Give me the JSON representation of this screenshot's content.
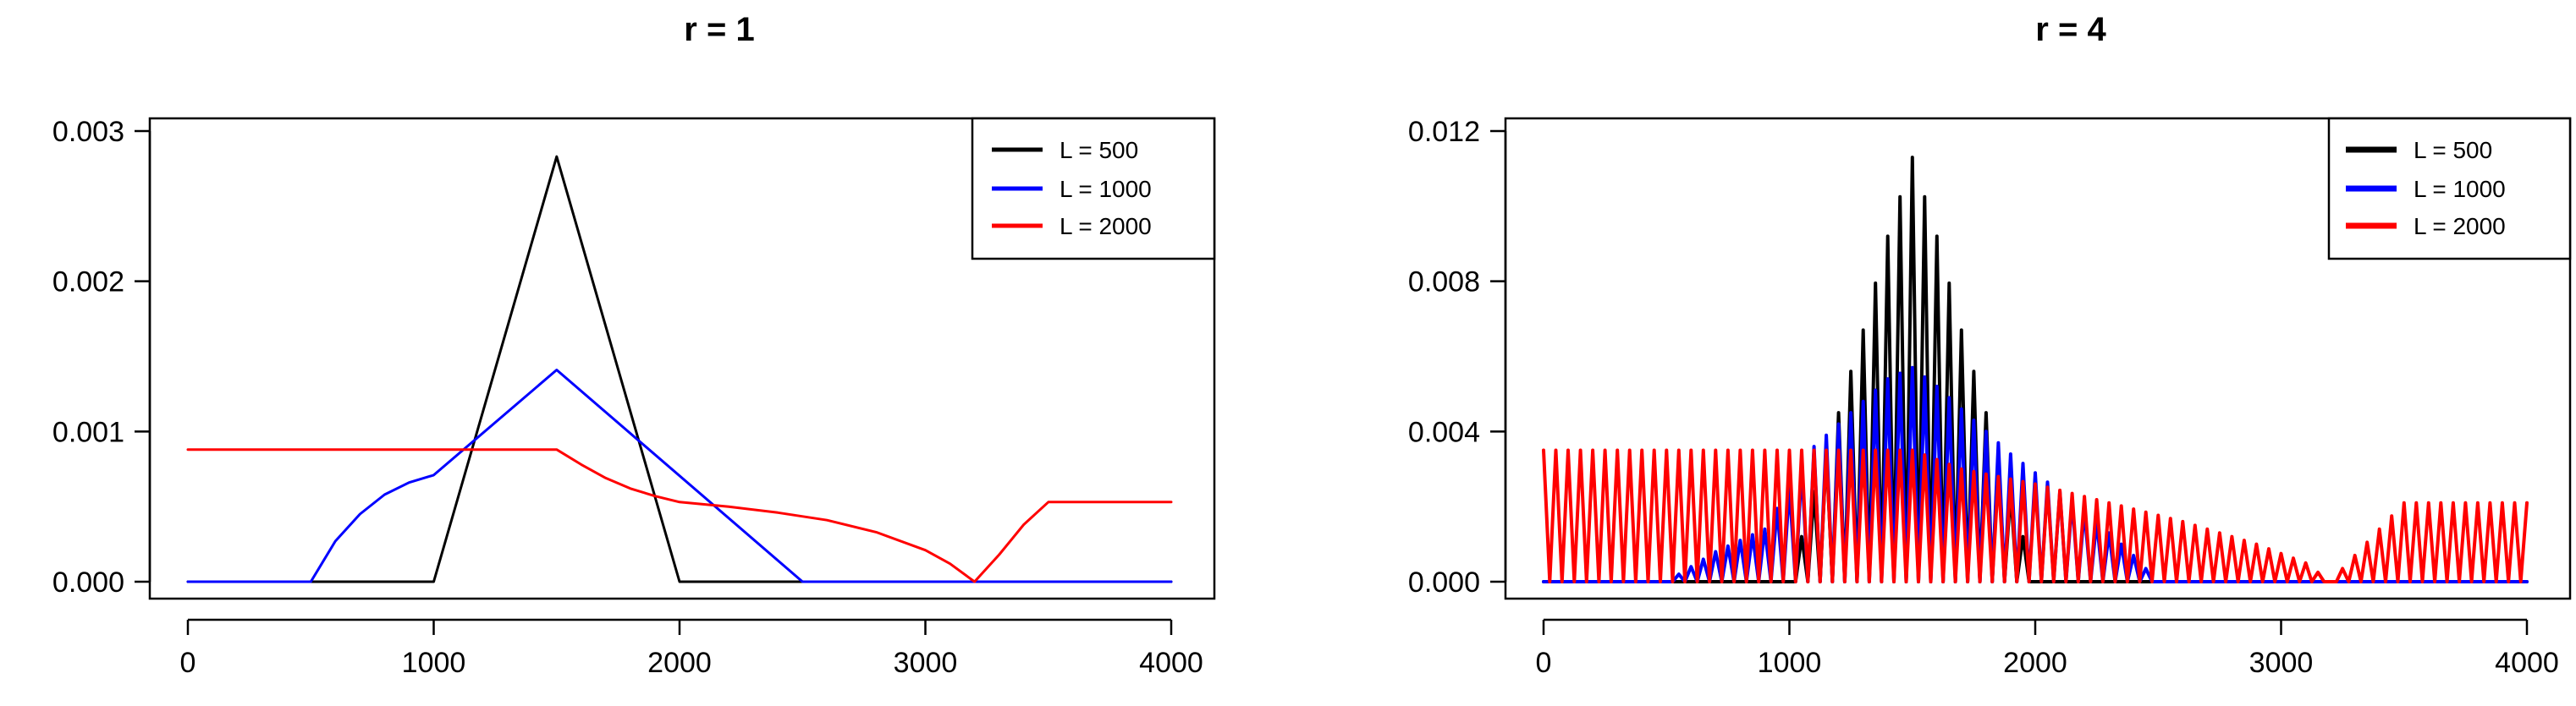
{
  "chart_data": [
    {
      "type": "line",
      "title": "r = 1",
      "xlabel": "",
      "ylabel": "",
      "xlim": [
        0,
        4000
      ],
      "ylim": [
        0,
        0.003
      ],
      "x_ticks": [
        0,
        1000,
        2000,
        3000,
        4000
      ],
      "x_tick_labels": [
        "0",
        "1000",
        "2000",
        "3000",
        "4000"
      ],
      "y_ticks": [
        0,
        0.001,
        0.002,
        0.003
      ],
      "y_tick_labels": [
        "0.000",
        "0.001",
        "0.002",
        "0.003"
      ],
      "grid": false,
      "legend_position": "top-right",
      "series": [
        {
          "name": "L = 500",
          "color": "#000000",
          "x": [
            0,
            1000,
            1500,
            2000,
            4000
          ],
          "y": [
            0,
            0,
            0.00283,
            0,
            0
          ]
        },
        {
          "name": "L = 1000",
          "color": "#0000ff",
          "x": [
            0,
            500,
            600,
            700,
            800,
            900,
            1000,
            1500,
            2500,
            4000
          ],
          "y": [
            0,
            0,
            0.00027,
            0.00045,
            0.00058,
            0.00066,
            0.00071,
            0.00141,
            0,
            0
          ]
        },
        {
          "name": "L = 2000",
          "color": "#ff0000",
          "x": [
            0,
            1500,
            1600,
            1700,
            1800,
            1900,
            2000,
            2200,
            2400,
            2600,
            2800,
            3000,
            3100,
            3200,
            3300,
            3400,
            3500,
            4000
          ],
          "y": [
            0.00088,
            0.00088,
            0.00078,
            0.00069,
            0.00062,
            0.00057,
            0.00053,
            0.0005,
            0.00046,
            0.00041,
            0.00033,
            0.00021,
            0.00012,
            0,
            0.00018,
            0.00038,
            0.00053,
            0.00053
          ]
        }
      ]
    },
    {
      "type": "line",
      "title": "r = 4",
      "xlabel": "",
      "ylabel": "",
      "xlim": [
        0,
        4000
      ],
      "ylim": [
        0,
        0.012
      ],
      "x_ticks": [
        0,
        1000,
        2000,
        3000,
        4000
      ],
      "x_tick_labels": [
        "0",
        "1000",
        "2000",
        "3000",
        "4000"
      ],
      "y_ticks": [
        0,
        0.004,
        0.008,
        0.012
      ],
      "y_tick_labels": [
        "0.000",
        "0.004",
        "0.008",
        "0.012"
      ],
      "grid": false,
      "legend_position": "top-right",
      "oscillation_period": 50,
      "series": [
        {
          "name": "L = 500",
          "color": "#000000",
          "x": [
            0,
            1000,
            1100,
            1200,
            1300,
            1400,
            1500,
            1600,
            1700,
            1800,
            1900,
            2000,
            4000
          ],
          "y_max": [
            0,
            0,
            0.0024,
            0.0045,
            0.0067,
            0.0092,
            0.0113,
            0.0092,
            0.0067,
            0.0045,
            0.0024,
            0,
            0
          ]
        },
        {
          "name": "L = 1000",
          "color": "#0000ff",
          "x": [
            0,
            500,
            700,
            900,
            1100,
            1200,
            1300,
            1400,
            1500,
            1600,
            1700,
            1800,
            1900,
            2000,
            2100,
            2200,
            2300,
            2400,
            2500,
            4000
          ],
          "y_max": [
            0,
            0,
            0.0008,
            0.0014,
            0.0036,
            0.0042,
            0.0048,
            0.0054,
            0.0057,
            0.0052,
            0.0046,
            0.004,
            0.0034,
            0.0029,
            0.0024,
            0.0019,
            0.0013,
            0.0007,
            0,
            0
          ]
        },
        {
          "name": "L = 2000",
          "color": "#ff0000",
          "x": [
            0,
            1500,
            1700,
            2000,
            2300,
            2600,
            2900,
            3100,
            3200,
            3300,
            3400,
            3500,
            4000
          ],
          "y_max": [
            0.0035,
            0.0035,
            0.003,
            0.0026,
            0.0021,
            0.0016,
            0.001,
            0.0005,
            0,
            0.0007,
            0.0014,
            0.0021,
            0.0021
          ]
        }
      ]
    }
  ]
}
